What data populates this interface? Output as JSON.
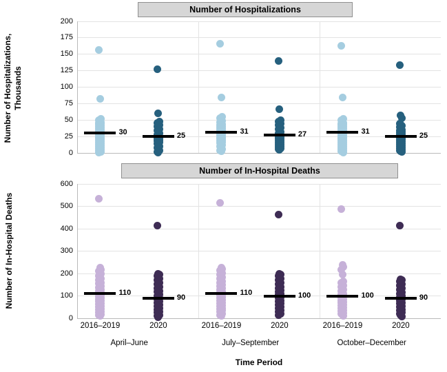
{
  "chart_data": [
    {
      "type": "scatter",
      "subtype": "strip-plot-with-median",
      "panel_title": "Number of Hospitalizations",
      "ylabel_lines": [
        "Number of Hospitalizations,",
        "Thousands"
      ],
      "ylim": [
        0,
        200
      ],
      "yticks": [
        200,
        175,
        150,
        125,
        100,
        75,
        50,
        25,
        0
      ],
      "grid": true,
      "legend": "none",
      "groups": [
        "April–June",
        "July–September",
        "October–December"
      ],
      "series_labels": [
        "2016–2019",
        "2020"
      ],
      "series_colors": [
        "#a5cde0",
        "#26607e"
      ],
      "columns": [
        {
          "group": "April–June",
          "series": "2016–2019",
          "median": 30,
          "points": [
            157,
            82,
            52,
            50,
            48,
            47,
            46,
            45,
            44,
            43,
            42,
            41,
            40,
            39,
            38,
            37,
            36,
            35,
            34,
            33,
            32,
            31,
            30,
            29,
            28,
            27,
            26,
            25,
            24,
            23,
            22,
            21,
            20,
            19,
            18,
            17,
            16,
            15,
            14,
            13,
            12,
            11,
            10,
            9,
            8,
            7,
            6,
            5,
            4,
            3,
            2,
            1
          ]
        },
        {
          "group": "April–June",
          "series": "2020",
          "median": 25,
          "points": [
            127,
            60,
            48,
            46,
            44,
            42,
            40,
            38,
            36,
            34,
            32,
            30,
            28,
            26,
            25,
            24,
            23,
            22,
            21,
            20,
            19,
            18,
            17,
            16,
            14,
            12,
            10,
            8,
            6,
            4,
            2,
            1
          ]
        },
        {
          "group": "July–September",
          "series": "2016–2019",
          "median": 31,
          "points": [
            166,
            84,
            55,
            53,
            51,
            49,
            47,
            45,
            43,
            42,
            41,
            40,
            39,
            38,
            37,
            36,
            35,
            34,
            33,
            32,
            31,
            30,
            29,
            28,
            27,
            26,
            25,
            24,
            23,
            22,
            21,
            20,
            19,
            18,
            17,
            16,
            15,
            14,
            12,
            10,
            8,
            6,
            4,
            3
          ]
        },
        {
          "group": "July–September",
          "series": "2020",
          "median": 27,
          "points": [
            140,
            66,
            50,
            48,
            46,
            44,
            42,
            40,
            38,
            36,
            34,
            32,
            30,
            29,
            28,
            27,
            26,
            25,
            24,
            23,
            22,
            21,
            20,
            19,
            18,
            17,
            16,
            15,
            14,
            13,
            12,
            11,
            10,
            9,
            8,
            7,
            6,
            5
          ]
        },
        {
          "group": "October–December",
          "series": "2016–2019",
          "median": 31,
          "points": [
            163,
            84,
            52,
            50,
            48,
            46,
            45,
            44,
            43,
            42,
            41,
            40,
            39,
            38,
            37,
            36,
            35,
            34,
            33,
            32,
            31,
            30,
            29,
            28,
            27,
            26,
            25,
            24,
            23,
            22,
            21,
            20,
            19,
            18,
            17,
            16,
            15,
            14,
            13,
            12,
            11,
            10,
            9,
            8,
            7,
            6,
            5,
            4,
            3,
            2,
            1
          ]
        },
        {
          "group": "October–December",
          "series": "2020",
          "median": 25,
          "points": [
            133,
            57,
            53,
            45,
            43,
            41,
            39,
            37,
            35,
            34,
            33,
            32,
            31,
            30,
            29,
            28,
            27,
            26,
            25,
            24,
            23,
            22,
            21,
            20,
            19,
            18,
            17,
            16,
            15,
            14,
            13,
            12,
            11,
            10,
            9,
            8,
            7,
            6,
            5,
            4,
            3,
            2
          ]
        }
      ]
    },
    {
      "type": "scatter",
      "subtype": "strip-plot-with-median",
      "panel_title": "Number of In-Hospital Deaths",
      "ylabel_lines": [
        "Number of In-Hospital Deaths"
      ],
      "ylim": [
        0,
        600
      ],
      "yticks": [
        600,
        500,
        400,
        300,
        200,
        100,
        0
      ],
      "grid": true,
      "legend": "none",
      "groups": [
        "April–June",
        "July–September",
        "October–December"
      ],
      "series_labels": [
        "2016–2019",
        "2020"
      ],
      "series_colors": [
        "#c6b1d8",
        "#3e2c54"
      ],
      "columns": [
        {
          "group": "April–June",
          "series": "2016–2019",
          "median": 110,
          "points": [
            533,
            225,
            218,
            211,
            204,
            197,
            190,
            184,
            178,
            172,
            166,
            160,
            154,
            148,
            143,
            138,
            133,
            128,
            123,
            118,
            114,
            110,
            106,
            102,
            98,
            94,
            90,
            86,
            82,
            78,
            74,
            70,
            66,
            62,
            58,
            54,
            50,
            46,
            42,
            38,
            34,
            30,
            26,
            22,
            18,
            14,
            10
          ]
        },
        {
          "group": "April–June",
          "series": "2020",
          "median": 90,
          "points": [
            413,
            200,
            195,
            189,
            183,
            177,
            171,
            165,
            159,
            153,
            147,
            141,
            135,
            129,
            123,
            117,
            111,
            105,
            100,
            95,
            90,
            85,
            80,
            75,
            70,
            65,
            60,
            55,
            50,
            45,
            40,
            35,
            30,
            25,
            20,
            15,
            10,
            5
          ]
        },
        {
          "group": "July–September",
          "series": "2016–2019",
          "median": 110,
          "points": [
            515,
            225,
            220,
            214,
            208,
            202,
            196,
            190,
            184,
            178,
            172,
            166,
            160,
            154,
            148,
            143,
            138,
            133,
            128,
            123,
            118,
            114,
            110,
            106,
            102,
            98,
            94,
            90,
            86,
            82,
            78,
            74,
            70,
            66,
            62,
            58,
            54,
            50,
            46,
            42,
            38,
            34,
            30,
            25,
            20,
            15,
            10
          ]
        },
        {
          "group": "July–September",
          "series": "2020",
          "median": 100,
          "points": [
            462,
            200,
            194,
            188,
            182,
            176,
            170,
            164,
            158,
            152,
            146,
            140,
            135,
            130,
            125,
            120,
            115,
            110,
            105,
            100,
            95,
            90,
            85,
            80,
            75,
            70,
            65,
            60,
            55,
            50,
            45,
            40,
            35,
            30,
            25,
            20,
            15
          ]
        },
        {
          "group": "October–December",
          "series": "2016–2019",
          "median": 100,
          "points": [
            488,
            240,
            230,
            218,
            196,
            165,
            158,
            151,
            145,
            139,
            133,
            127,
            121,
            115,
            110,
            105,
            100,
            96,
            92,
            88,
            84,
            80,
            76,
            72,
            68,
            64,
            60,
            56,
            52,
            48,
            44,
            40,
            36,
            32,
            28,
            24,
            20,
            15,
            10
          ]
        },
        {
          "group": "October–December",
          "series": "2020",
          "median": 90,
          "points": [
            413,
            175,
            170,
            164,
            158,
            152,
            146,
            140,
            134,
            128,
            122,
            116,
            110,
            105,
            100,
            95,
            90,
            85,
            80,
            75,
            70,
            65,
            60,
            55,
            50,
            45,
            40,
            35,
            30,
            25,
            20,
            15,
            8
          ]
        }
      ]
    }
  ],
  "x_axis": {
    "title": "Time Period",
    "pair_labels": [
      "2016–2019",
      "2020"
    ],
    "group_labels": [
      "April–June",
      "July–September",
      "October–December"
    ]
  }
}
